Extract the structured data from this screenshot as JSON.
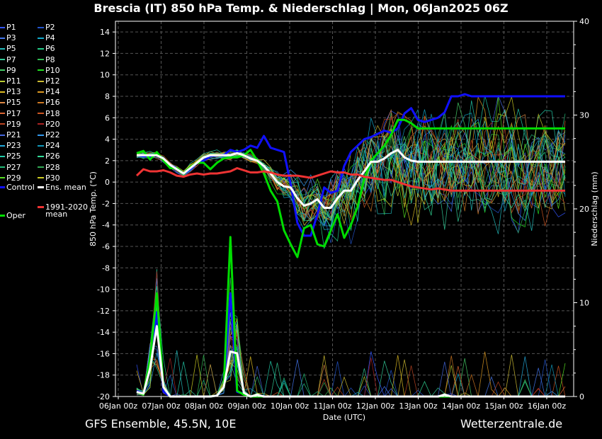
{
  "chart_data": {
    "type": "line",
    "title": "Brescia  (IT)  850 hPa Temp. & Niederschlag | Mon, 06Jan2025 06Z",
    "xlabel": "Date (UTC)",
    "ylabel": "850 hPa Temp. (°C)",
    "y2label": "Niederschlag (mm)",
    "ylim": [
      -20,
      15
    ],
    "y2lim": [
      0,
      40
    ],
    "y_ticks": [
      "-20",
      "-18",
      "-16",
      "-14",
      "-12",
      "-10",
      "-8",
      "-6",
      "-4",
      "-2",
      "0",
      "2",
      "4",
      "6",
      "8",
      "10",
      "12",
      "14"
    ],
    "y2_ticks": [
      "0",
      "10",
      "20",
      "30",
      "40"
    ],
    "x_tick_labels": [
      "06Jan 00z",
      "07Jan 00z",
      "08Jan 00z",
      "09Jan 00z",
      "10Jan 00z",
      "11Jan 00z",
      "12Jan 00z",
      "13Jan 00z",
      "14Jan 00z",
      "15Jan 00z",
      "16Jan 00z"
    ],
    "x_hours": [
      0,
      6,
      12,
      18,
      24,
      30,
      36,
      42,
      48,
      54,
      60,
      66,
      72,
      78,
      84,
      90,
      96,
      102,
      108,
      114,
      120,
      126,
      132,
      138,
      144,
      150,
      156,
      162,
      168,
      174,
      180,
      186,
      192,
      198,
      204,
      210,
      216,
      222,
      228,
      234,
      240,
      246,
      252,
      258,
      264,
      270,
      276,
      282,
      288,
      294,
      300,
      306,
      312,
      318,
      324,
      330,
      336,
      342,
      348,
      354,
      360,
      366,
      372,
      378,
      384
    ],
    "grid": true,
    "legend_position": "left-outside",
    "series": [
      {
        "name": "Control",
        "color": "#1010ff",
        "width": 3,
        "values": [
          2.5,
          2.4,
          2.4,
          2.5,
          2.2,
          1.6,
          1.3,
          0.8,
          1.2,
          1.8,
          2.0,
          2.4,
          2.5,
          2.5,
          3.0,
          2.8,
          3.0,
          3.4,
          3.2,
          4.3,
          3.2,
          3.0,
          2.8,
          -0.2,
          -3.8,
          -5.0,
          -5.0,
          -3.0,
          -0.5,
          -1.0,
          -0.8,
          1.5,
          2.8,
          3.4,
          4.0,
          4.2,
          4.5,
          4.8,
          4.6,
          5.0,
          6.4,
          6.9,
          5.8,
          5.6,
          5.8,
          6.0,
          6.5,
          8.0,
          8.0,
          8.2,
          8.0,
          8.0,
          8.0,
          8.0,
          8.0,
          8.0,
          8.0,
          8.0,
          8.0,
          8.0,
          8.0,
          8.0,
          8.0,
          8.0,
          8.0
        ]
      },
      {
        "name": "Oper",
        "color": "#00dd00",
        "width": 3,
        "values": [
          2.7,
          2.9,
          2.1,
          2.8,
          2.0,
          1.3,
          1.3,
          0.8,
          1.4,
          1.8,
          1.8,
          1.2,
          1.8,
          2.2,
          2.3,
          2.3,
          2.5,
          3.0,
          2.0,
          0.8,
          -0.8,
          -1.8,
          -4.5,
          -5.8,
          -7.0,
          -4.3,
          -4.0,
          -5.8,
          -6.0,
          -4.5,
          -3.0,
          -5.2,
          -4.0,
          -2.3,
          0.3,
          2.0,
          2.7,
          3.4,
          4.4,
          5.8,
          5.8,
          5.5,
          5.0,
          5.0,
          5.0,
          5.0,
          5.0,
          5.0,
          5.0,
          5.0,
          5.0,
          5.0,
          5.0,
          5.0,
          5.0,
          5.0,
          5.0,
          5.0,
          5.0,
          5.0,
          5.0,
          5.0,
          5.0,
          5.0,
          5.0
        ]
      },
      {
        "name": "Ens. mean",
        "color": "#ffffff",
        "width": 3,
        "values": [
          2.5,
          2.5,
          2.5,
          2.5,
          2.2,
          1.6,
          1.2,
          0.8,
          1.3,
          1.8,
          2.3,
          2.5,
          2.5,
          2.5,
          2.5,
          2.7,
          2.5,
          2.2,
          2.0,
          1.5,
          0.8,
          0.0,
          -0.4,
          -0.5,
          -1.5,
          -2.2,
          -2.0,
          -1.6,
          -2.4,
          -2.4,
          -1.5,
          -0.8,
          -0.8,
          0.2,
          1.0,
          1.9,
          1.9,
          2.2,
          2.7,
          3.0,
          2.3,
          2.0,
          1.9,
          1.9,
          1.9,
          1.9,
          1.9,
          1.9,
          1.9,
          1.9,
          1.9,
          1.9,
          1.9,
          1.9,
          1.9,
          1.9,
          1.9,
          1.9,
          1.9,
          1.9,
          1.9,
          1.9,
          1.9,
          1.9,
          1.9
        ]
      },
      {
        "name": "1991-2020 mean",
        "color": "#ee3333",
        "width": 3,
        "values": [
          0.6,
          1.2,
          1.0,
          1.0,
          1.1,
          0.9,
          0.6,
          0.5,
          0.7,
          0.8,
          0.7,
          0.8,
          0.8,
          0.9,
          1.0,
          1.3,
          1.1,
          0.9,
          0.9,
          1.0,
          0.9,
          0.7,
          0.6,
          0.6,
          0.6,
          0.5,
          0.4,
          0.6,
          0.8,
          1.0,
          0.9,
          0.9,
          0.7,
          0.7,
          0.5,
          0.4,
          0.3,
          0.2,
          0.2,
          0.0,
          -0.2,
          -0.4,
          -0.5,
          -0.6,
          -0.7,
          -0.6,
          -0.7,
          -0.8,
          -0.8,
          -0.8,
          -0.8,
          -0.8,
          -0.8,
          -0.8,
          -0.8,
          -0.8,
          -0.8,
          -0.8,
          -0.8,
          -0.8,
          -0.8,
          -0.8,
          -0.8,
          -0.8,
          -0.8
        ]
      }
    ],
    "precip_series": [
      {
        "name": "Control",
        "color": "#1010ff",
        "width": 3,
        "values": [
          0.6,
          0.3,
          3.0,
          9.0,
          0.5,
          0.0,
          0.0,
          0.0,
          0.0,
          0.0,
          0.0,
          0.0,
          0.1,
          1.0,
          11.0,
          0.5,
          0.3,
          0.0,
          0.0,
          0.0,
          0.0,
          0.0,
          0.0,
          0.0,
          0.0,
          0.0,
          0.0,
          0.0,
          0.0,
          0.0,
          0.0,
          0.0,
          0.0,
          0.0,
          0.0,
          0.0,
          0.0,
          0.0,
          0.0,
          0.0,
          0.0,
          0.0,
          0.0,
          0.0,
          0.0,
          0.0,
          0.0,
          0.0,
          0.0,
          0.0,
          0.0,
          0.0,
          0.0,
          0.0,
          0.0,
          0.0,
          0.0,
          0.0,
          0.0,
          0.0,
          0.0,
          0.0,
          0.0,
          0.0,
          0.0
        ]
      },
      {
        "name": "Oper",
        "color": "#00dd00",
        "width": 3,
        "values": [
          0.5,
          0.2,
          4.0,
          11.0,
          1.0,
          0.0,
          0.0,
          0.0,
          0.0,
          0.0,
          0.0,
          0.0,
          0.1,
          1.0,
          17.0,
          0.6,
          0.2,
          0.0,
          0.0,
          0.0,
          0.0,
          0.0,
          0.0,
          0.0,
          0.0,
          0.0,
          0.0,
          0.0,
          0.0,
          0.0,
          0.0,
          0.0,
          0.0,
          0.0,
          0.0,
          0.0,
          0.0,
          0.0,
          0.0,
          0.0,
          0.0,
          0.0,
          0.0,
          0.0,
          0.0,
          0.0,
          0.0,
          0.0,
          0.0,
          0.0,
          0.0,
          0.0,
          0.0,
          0.0,
          0.0,
          0.0,
          0.0,
          0.0,
          0.0,
          0.0,
          0.0,
          0.0,
          0.0,
          0.0,
          0.0
        ]
      },
      {
        "name": "Ens. mean",
        "color": "#ffffff",
        "width": 3,
        "values": [
          0.5,
          0.3,
          3.0,
          7.5,
          1.0,
          0.0,
          0.0,
          0.0,
          0.0,
          0.0,
          0.0,
          0.0,
          0.1,
          1.0,
          4.8,
          4.6,
          0.4,
          0.0,
          0.2,
          0.0,
          0.0,
          0.0,
          0.0,
          0.0,
          0.0,
          0.0,
          0.0,
          0.0,
          0.0,
          0.0,
          0.0,
          0.0,
          0.0,
          0.0,
          0.0,
          0.0,
          0.0,
          0.0,
          0.0,
          0.0,
          0.0,
          0.0,
          0.0,
          0.0,
          0.0,
          0.0,
          0.2,
          0.0,
          0.0,
          0.0,
          0.0,
          0.0,
          0.0,
          0.0,
          0.0,
          0.0,
          0.0,
          0.0,
          0.0,
          0.0,
          0.0,
          0.0,
          0.0,
          0.0,
          0.0
        ]
      }
    ]
  },
  "legend": {
    "items": [
      {
        "label": "P1",
        "color": "#3355ff"
      },
      {
        "label": "P2",
        "color": "#2255cc"
      },
      {
        "label": "P3",
        "color": "#4477ee"
      },
      {
        "label": "P4",
        "color": "#11aacc"
      },
      {
        "label": "P5",
        "color": "#22bbbb"
      },
      {
        "label": "P6",
        "color": "#22cc88"
      },
      {
        "label": "P7",
        "color": "#33cc99"
      },
      {
        "label": "P8",
        "color": "#33bb55"
      },
      {
        "label": "P9",
        "color": "#44cc66"
      },
      {
        "label": "P10",
        "color": "#22dd22"
      },
      {
        "label": "P11",
        "color": "#bbcc33"
      },
      {
        "label": "P12",
        "color": "#ccbb33"
      },
      {
        "label": "P13",
        "color": "#ddbb22"
      },
      {
        "label": "P14",
        "color": "#dd9922"
      },
      {
        "label": "P15",
        "color": "#dd8844"
      },
      {
        "label": "P16",
        "color": "#cc7722"
      },
      {
        "label": "P17",
        "color": "#dd6633"
      },
      {
        "label": "P18",
        "color": "#cc5522"
      },
      {
        "label": "P19",
        "color": "#bb4422"
      },
      {
        "label": "P20",
        "color": "#aa2222"
      },
      {
        "label": "P21",
        "color": "#4466dd"
      },
      {
        "label": "P22",
        "color": "#3399ee"
      },
      {
        "label": "P23",
        "color": "#22aadd"
      },
      {
        "label": "P24",
        "color": "#1199bb"
      },
      {
        "label": "P25",
        "color": "#22ccaa"
      },
      {
        "label": "P26",
        "color": "#33dd99"
      },
      {
        "label": "P27",
        "color": "#22bb77"
      },
      {
        "label": "P28",
        "color": "#33aa55"
      },
      {
        "label": "P29",
        "color": "#55dd22"
      },
      {
        "label": "P30",
        "color": "#cccc22"
      }
    ],
    "control": {
      "label": "Control",
      "color": "#1010ff"
    },
    "ens_mean": {
      "label": "Ens. mean",
      "color": "#ffffff"
    },
    "clim_line1": "1991-2020",
    "clim_line2": "mean",
    "clim_color": "#ee3333",
    "oper": {
      "label": "Oper",
      "color": "#00dd00"
    }
  },
  "footer": {
    "left": "GFS Ensemble, 45.5N, 10E",
    "right": "Wetterzentrale.de"
  }
}
